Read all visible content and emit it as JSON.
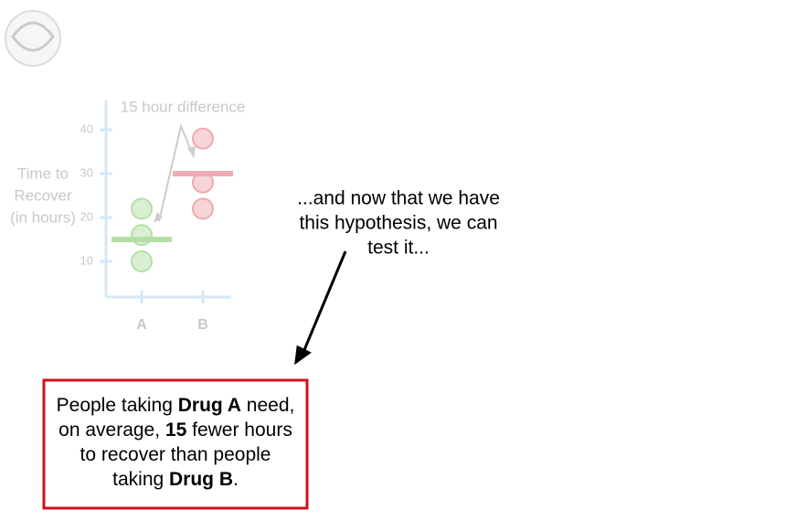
{
  "chart_data": {
    "type": "strip",
    "ylabel": [
      "Time to",
      "Recover",
      "(in hours)"
    ],
    "annotation": "15 hour difference",
    "categories": [
      "A",
      "B"
    ],
    "values": [
      [
        10,
        16,
        22
      ],
      [
        22,
        28,
        38
      ]
    ],
    "means": [
      15,
      30
    ],
    "colors": [
      "#b5e0a5",
      "#f0aab0"
    ],
    "ylim": [
      0,
      45
    ],
    "yticks": [
      10,
      20,
      30,
      40
    ]
  },
  "callout": [
    "...and now that we have",
    "this hypothesis, we can",
    "test it..."
  ],
  "hypothesis": [
    [
      {
        "text": "People taking ",
        "bold": false
      },
      {
        "text": "Drug A",
        "bold": true
      },
      {
        "text": " need,",
        "bold": false
      }
    ],
    [
      {
        "text": "on average, ",
        "bold": false
      },
      {
        "text": "15",
        "bold": true
      },
      {
        "text": " fewer hours",
        "bold": false
      }
    ],
    [
      {
        "text": "to recover than people",
        "bold": false
      }
    ],
    [
      {
        "text": "taking ",
        "bold": false
      },
      {
        "text": "Drug B",
        "bold": true
      },
      {
        "text": ".",
        "bold": false
      }
    ]
  ]
}
